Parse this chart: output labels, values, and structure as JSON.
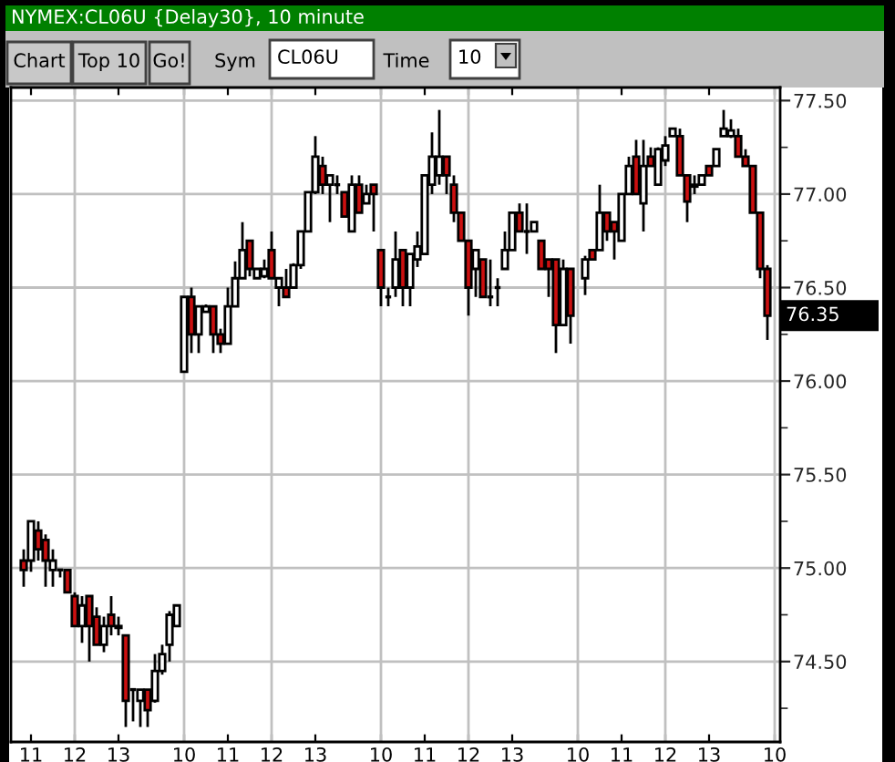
{
  "chart_data": {
    "type": "candlestick",
    "title": "NYMEX:CL06U {Delay30}, 10 minute",
    "categories": [
      null,
      "11",
      null,
      null,
      null,
      null,
      null,
      "12",
      null,
      null,
      null,
      null,
      null,
      "13",
      null,
      null,
      null,
      null,
      null,
      null,
      null,
      null,
      "10",
      null,
      null,
      null,
      null,
      null,
      "11",
      null,
      null,
      null,
      null,
      null,
      "12",
      null,
      null,
      null,
      null,
      null,
      "13",
      null,
      null,
      null,
      null,
      null,
      null,
      null,
      null,
      "10",
      null,
      null,
      null,
      null,
      null,
      "11",
      null,
      null,
      null,
      null,
      null,
      "12",
      null,
      null,
      null,
      null,
      null,
      "13",
      null,
      null,
      null,
      null,
      null,
      null,
      null,
      null,
      "10",
      null,
      null,
      null,
      null,
      null,
      "11",
      null,
      null,
      null,
      null,
      null,
      "12",
      null,
      null,
      null,
      null,
      null,
      "13",
      null,
      null,
      null,
      null,
      null,
      null,
      null,
      null,
      "10"
    ],
    "ohlc": [
      [
        75.04,
        75.1,
        74.9,
        74.99
      ],
      [
        75.04,
        75.25,
        74.98,
        75.25
      ],
      [
        75.2,
        75.25,
        75.04,
        75.1
      ],
      [
        75.15,
        75.18,
        74.9,
        75.04
      ],
      [
        74.99,
        75.1,
        74.9,
        75.04
      ],
      [
        74.99,
        74.99,
        74.95,
        74.99
      ],
      [
        74.99,
        74.99,
        74.87,
        74.87
      ],
      [
        74.85,
        74.87,
        74.69,
        74.69
      ],
      [
        74.69,
        74.85,
        74.6,
        74.8
      ],
      [
        74.85,
        74.85,
        74.5,
        74.69
      ],
      [
        74.74,
        74.79,
        74.59,
        74.59
      ],
      [
        74.59,
        74.74,
        74.55,
        74.69
      ],
      [
        74.75,
        74.85,
        74.64,
        74.69
      ],
      [
        74.68,
        74.74,
        74.64,
        74.69
      ],
      [
        74.64,
        74.64,
        74.15,
        74.29
      ],
      [
        74.35,
        74.35,
        74.18,
        74.35
      ],
      [
        74.29,
        74.35,
        74.15,
        74.35
      ],
      [
        74.35,
        74.35,
        74.15,
        74.24
      ],
      [
        74.29,
        74.54,
        74.28,
        74.45
      ],
      [
        74.45,
        74.59,
        74.43,
        74.54
      ],
      [
        74.59,
        74.77,
        74.5,
        74.75
      ],
      [
        74.69,
        74.8,
        74.69,
        74.8
      ],
      [
        76.05,
        76.45,
        76.05,
        76.45
      ],
      [
        76.45,
        76.5,
        76.15,
        76.25
      ],
      [
        76.25,
        76.4,
        76.15,
        76.4
      ],
      [
        76.37,
        76.41,
        76.37,
        76.4
      ],
      [
        76.4,
        76.4,
        76.15,
        76.25
      ],
      [
        76.25,
        76.28,
        76.15,
        76.2
      ],
      [
        76.2,
        76.5,
        76.2,
        76.4
      ],
      [
        76.4,
        76.64,
        76.4,
        76.55
      ],
      [
        76.55,
        76.85,
        76.55,
        76.7
      ],
      [
        76.75,
        76.75,
        76.56,
        76.6
      ],
      [
        76.55,
        76.6,
        76.55,
        76.6
      ],
      [
        76.56,
        76.65,
        76.55,
        76.6
      ],
      [
        76.7,
        76.8,
        76.55,
        76.55
      ],
      [
        76.5,
        76.55,
        76.4,
        76.55
      ],
      [
        76.5,
        76.6,
        76.45,
        76.45
      ],
      [
        76.5,
        76.63,
        76.5,
        76.62
      ],
      [
        76.62,
        76.8,
        76.6,
        76.8
      ],
      [
        76.8,
        77.01,
        76.8,
        77.01
      ],
      [
        77.01,
        77.31,
        77.0,
        77.2
      ],
      [
        77.15,
        77.2,
        77.0,
        77.05
      ],
      [
        77.05,
        77.1,
        76.85,
        77.1
      ],
      [
        77.05,
        77.1,
        77.0,
        77.05
      ],
      [
        77.01,
        77.01,
        76.88,
        76.88
      ],
      [
        76.8,
        77.1,
        76.8,
        77.05
      ],
      [
        77.05,
        77.1,
        76.9,
        76.9
      ],
      [
        76.95,
        77.05,
        76.95,
        77.0
      ],
      [
        77.05,
        77.05,
        76.8,
        77.0
      ],
      [
        76.7,
        76.7,
        76.4,
        76.5
      ],
      [
        76.45,
        76.5,
        76.4,
        76.45
      ],
      [
        76.5,
        76.8,
        76.45,
        76.65
      ],
      [
        76.7,
        76.7,
        76.4,
        76.5
      ],
      [
        76.5,
        76.68,
        76.4,
        76.68
      ],
      [
        76.65,
        76.8,
        76.61,
        76.72
      ],
      [
        76.68,
        77.1,
        76.68,
        77.1
      ],
      [
        77.05,
        77.33,
        77.0,
        77.2
      ],
      [
        77.1,
        77.45,
        77.05,
        77.2
      ],
      [
        77.2,
        77.2,
        77.0,
        77.1
      ],
      [
        77.05,
        77.1,
        76.85,
        76.9
      ],
      [
        76.9,
        76.9,
        76.75,
        76.75
      ],
      [
        76.75,
        76.75,
        76.35,
        76.5
      ],
      [
        76.6,
        76.7,
        76.45,
        76.7
      ],
      [
        76.65,
        76.65,
        76.45,
        76.45
      ],
      [
        76.45,
        76.65,
        76.4,
        76.45
      ],
      [
        76.5,
        76.55,
        76.4,
        76.5
      ],
      [
        76.6,
        76.8,
        76.6,
        76.7
      ],
      [
        76.7,
        76.9,
        76.7,
        76.9
      ],
      [
        76.9,
        76.95,
        76.8,
        76.8
      ],
      [
        76.8,
        76.95,
        76.68,
        76.8
      ],
      [
        76.8,
        76.85,
        76.8,
        76.85
      ],
      [
        76.75,
        76.75,
        76.6,
        76.6
      ],
      [
        76.65,
        76.65,
        76.45,
        76.6
      ],
      [
        76.65,
        76.65,
        76.15,
        76.3
      ],
      [
        76.3,
        76.65,
        76.3,
        76.6
      ],
      [
        76.6,
        76.6,
        76.2,
        76.35
      ],
      null,
      [
        76.55,
        76.67,
        76.46,
        76.65
      ],
      [
        76.7,
        76.7,
        76.65,
        76.65
      ],
      [
        76.7,
        77.05,
        76.7,
        76.9
      ],
      [
        76.9,
        76.9,
        76.75,
        76.8
      ],
      [
        76.85,
        76.85,
        76.65,
        76.8
      ],
      [
        76.75,
        77.0,
        76.75,
        77.0
      ],
      [
        77.0,
        77.2,
        77.0,
        77.15
      ],
      [
        77.2,
        77.29,
        77.0,
        77.0
      ],
      [
        76.95,
        77.29,
        76.8,
        77.15
      ],
      [
        77.2,
        77.25,
        77.15,
        77.15
      ],
      [
        77.05,
        77.25,
        77.05,
        77.24
      ],
      [
        77.18,
        77.31,
        77.15,
        77.26
      ],
      [
        77.31,
        77.35,
        77.31,
        77.35
      ],
      [
        77.31,
        77.35,
        77.1,
        77.1
      ],
      [
        77.1,
        77.1,
        76.85,
        76.96
      ],
      [
        77.04,
        77.1,
        77.0,
        77.05
      ],
      [
        77.05,
        77.1,
        77.05,
        77.1
      ],
      [
        77.15,
        77.15,
        77.1,
        77.1
      ],
      [
        77.15,
        77.24,
        77.15,
        77.24
      ],
      [
        77.31,
        77.45,
        77.31,
        77.35
      ],
      [
        77.31,
        77.4,
        77.3,
        77.34
      ],
      [
        77.31,
        77.35,
        77.2,
        77.2
      ],
      [
        77.2,
        77.24,
        77.15,
        77.15
      ],
      [
        77.15,
        77.15,
        76.9,
        76.9
      ],
      [
        76.9,
        76.9,
        76.55,
        76.6
      ],
      [
        76.6,
        76.62,
        76.22,
        76.35
      ],
      null
    ],
    "colors": [
      "#cc1010",
      "#ffffff",
      "#cc1010",
      "#cc1010",
      "#ffffff",
      "#000000",
      "#cc1010",
      "#cc1010",
      "#ffffff",
      "#cc1010",
      "#cc1010",
      "#ffffff",
      "#cc1010",
      "#ffffff",
      "#cc1010",
      "#000000",
      "#ffffff",
      "#cc1010",
      "#ffffff",
      "#ffffff",
      "#ffffff",
      "#ffffff",
      "#ffffff",
      "#cc1010",
      "#ffffff",
      "#ffffff",
      "#cc1010",
      "#cc1010",
      "#ffffff",
      "#ffffff",
      "#ffffff",
      "#cc1010",
      "#ffffff",
      "#ffffff",
      "#cc1010",
      "#ffffff",
      "#cc1010",
      "#ffffff",
      "#ffffff",
      "#ffffff",
      "#ffffff",
      "#cc1010",
      "#ffffff",
      "#000000",
      "#cc1010",
      "#ffffff",
      "#cc1010",
      "#ffffff",
      "#cc1010",
      "#cc1010",
      "#000000",
      "#ffffff",
      "#cc1010",
      "#ffffff",
      "#ffffff",
      "#ffffff",
      "#ffffff",
      "#ffffff",
      "#cc1010",
      "#cc1010",
      "#cc1010",
      "#cc1010",
      "#ffffff",
      "#cc1010",
      "#000000",
      "#000000",
      "#ffffff",
      "#ffffff",
      "#cc1010",
      "#000000",
      "#ffffff",
      "#cc1010",
      "#cc1010",
      "#cc1010",
      "#ffffff",
      "#cc1010",
      null,
      "#ffffff",
      "#cc1010",
      "#ffffff",
      "#cc1010",
      "#cc1010",
      "#ffffff",
      "#ffffff",
      "#cc1010",
      "#ffffff",
      "#cc1010",
      "#ffffff",
      "#ffffff",
      "#ffffff",
      "#cc1010",
      "#cc1010",
      "#ffffff",
      "#ffffff",
      "#cc1010",
      "#ffffff",
      "#ffffff",
      "#ffffff",
      "#cc1010",
      "#cc1010",
      "#cc1010",
      "#cc1010",
      "#cc1010",
      null
    ],
    "ylim": [
      74.07,
      77.57
    ],
    "yticks": [
      {
        "value": 74.25,
        "label": null
      },
      {
        "value": 74.5,
        "label": "74.50"
      },
      {
        "value": 74.75,
        "label": null
      },
      {
        "value": 75,
        "label": "75.00"
      },
      {
        "value": 75.25,
        "label": null
      },
      {
        "value": 75.5,
        "label": "75.50"
      },
      {
        "value": 75.75,
        "label": null
      },
      {
        "value": 76,
        "label": "76.00"
      },
      {
        "value": 76.25,
        "label": null
      },
      {
        "value": 76.5,
        "label": "76.50"
      },
      {
        "value": 76.75,
        "label": null
      },
      {
        "value": 77,
        "label": "77.00"
      },
      {
        "value": 77.25,
        "label": null
      },
      {
        "value": 77.5,
        "label": "77.50"
      }
    ],
    "grid": true,
    "annotations": [
      "Chart",
      "Top 10",
      "Go!",
      "Sym",
      "CL06U",
      "Time",
      "10",
      "76.35"
    ]
  }
}
